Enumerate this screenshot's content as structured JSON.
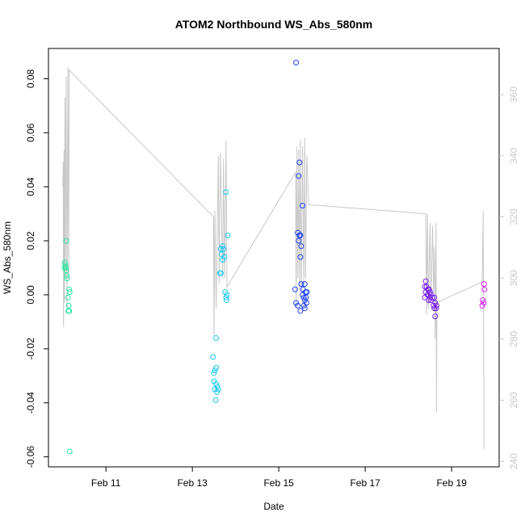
{
  "chart_data": {
    "type": "scatter",
    "title": "ATOM2 Northbound WS_Abs_580nm",
    "xlabel": "Date",
    "ylabel": "WS_Abs_580nm",
    "xlim": [
      9.67,
      20.1
    ],
    "ylim": [
      -0.0637,
      0.0912
    ],
    "y2lim": [
      238.2,
      375.1
    ],
    "xticks": [
      {
        "value": 11,
        "label": "Feb 11"
      },
      {
        "value": 13,
        "label": "Feb 13"
      },
      {
        "value": 15,
        "label": "Feb 15"
      },
      {
        "value": 17,
        "label": "Feb 17"
      },
      {
        "value": 19,
        "label": "Feb 19"
      }
    ],
    "yticks": [
      -0.06,
      -0.04,
      -0.02,
      {
        "value": 0,
        "label": "0.00"
      },
      0.02,
      0.04,
      0.06,
      0.08
    ],
    "y2ticks": [
      240,
      260,
      280,
      300,
      320,
      340,
      360
    ],
    "series": [
      {
        "color": "#2ee8a0",
        "x": [
          10.05,
          10.06,
          10.04,
          10.07,
          10.08,
          10.09,
          10.1,
          10.08,
          10.15,
          10.16,
          10.12,
          10.14,
          10.13,
          10.15,
          10.16
        ],
        "values": [
          0.012,
          0.011,
          0.01,
          0.01,
          0.009,
          0.007,
          0.006,
          0.02,
          0.002,
          0.001,
          -0.001,
          -0.004,
          -0.006,
          -0.006,
          -0.058
        ]
      },
      {
        "color": "#1ec8f0",
        "x": [
          13.78,
          13.82,
          13.7,
          13.66,
          13.72,
          13.68,
          13.74,
          13.7,
          13.64,
          13.66,
          13.76,
          13.8,
          13.78,
          13.79,
          13.55,
          13.48,
          13.55,
          13.52,
          13.5,
          13.5,
          13.55,
          13.52,
          13.58,
          13.6,
          13.57,
          13.54
        ],
        "values": [
          0.038,
          0.022,
          0.018,
          0.017,
          0.017,
          0.015,
          0.014,
          0.013,
          0.008,
          0.008,
          0.001,
          0.0,
          -0.001,
          -0.002,
          -0.016,
          -0.023,
          -0.027,
          -0.028,
          -0.029,
          -0.032,
          -0.033,
          -0.035,
          -0.034,
          -0.035,
          -0.036,
          -0.039
        ]
      },
      {
        "color": "#1e40f0",
        "x": [
          15.4,
          15.48,
          15.46,
          15.55,
          15.44,
          15.48,
          15.5,
          15.46,
          15.52,
          15.5,
          15.52,
          15.6,
          15.38,
          15.56,
          15.62,
          15.65,
          15.55,
          15.58,
          15.63,
          15.6,
          15.4,
          15.64,
          15.44,
          15.58,
          15.6,
          15.5
        ],
        "values": [
          0.086,
          0.049,
          0.044,
          0.033,
          0.023,
          0.022,
          0.022,
          0.02,
          0.018,
          0.014,
          0.004,
          0.004,
          0.002,
          0.002,
          0.001,
          0.001,
          0.0,
          -0.001,
          -0.001,
          -0.002,
          -0.003,
          -0.003,
          -0.004,
          -0.004,
          -0.005,
          -0.006
        ]
      },
      {
        "color": "#7a1ef0",
        "x": [
          18.4,
          18.42,
          18.38,
          18.45,
          18.48,
          18.4,
          18.5,
          18.44,
          18.52,
          18.38,
          18.5,
          18.55,
          18.6,
          18.47,
          18.52,
          18.62,
          18.58,
          18.65,
          18.6,
          18.64,
          18.62
        ],
        "values": [
          0.005,
          0.003,
          0.003,
          0.002,
          0.002,
          0.001,
          0.001,
          0.0,
          0.0,
          -0.001,
          -0.001,
          -0.001,
          -0.001,
          -0.002,
          -0.002,
          -0.003,
          -0.004,
          -0.004,
          -0.005,
          -0.005,
          -0.008
        ]
      },
      {
        "color": "#d51ef0",
        "x": [
          19.75,
          19.76,
          19.72,
          19.74,
          19.71
        ],
        "values": [
          0.004,
          0.002,
          -0.002,
          -0.003,
          -0.004
        ]
      },
      {
        "type": "line",
        "axis": "y2",
        "color": "#c8c8c8",
        "x": [
          10.0,
          10.01,
          10.02,
          10.03,
          10.04,
          10.05,
          10.06,
          10.08,
          10.1,
          10.12,
          10.14,
          10.15,
          13.49,
          13.5,
          13.52,
          13.55,
          13.6,
          13.62,
          13.65,
          13.7,
          13.72,
          13.75,
          13.78,
          13.8,
          13.84,
          15.39,
          15.4,
          15.42,
          15.44,
          15.46,
          15.48,
          15.5,
          15.52,
          15.55,
          15.58,
          15.6,
          15.62,
          15.65,
          15.69,
          18.4,
          18.42,
          18.44,
          18.46,
          18.5,
          18.52,
          18.56,
          18.58,
          18.6,
          18.62,
          18.64,
          18.65,
          18.66,
          19.71,
          19.73,
          19.75
        ],
        "values": [
          330,
          338,
          284,
          342,
          292,
          359,
          300,
          366,
          290,
          369,
          300,
          368,
          320,
          281,
          322,
          290,
          340,
          298,
          341,
          300,
          339,
          300,
          345,
          297,
          298,
          334.6,
          290,
          343,
          300,
          342,
          296,
          345,
          295,
          343,
          298,
          346,
          300,
          340,
          324,
          321,
          288,
          321,
          290,
          318,
          292,
          317,
          295,
          310,
          280,
          318,
          256,
          292,
          298.7,
          322,
          244
        ]
      }
    ]
  }
}
